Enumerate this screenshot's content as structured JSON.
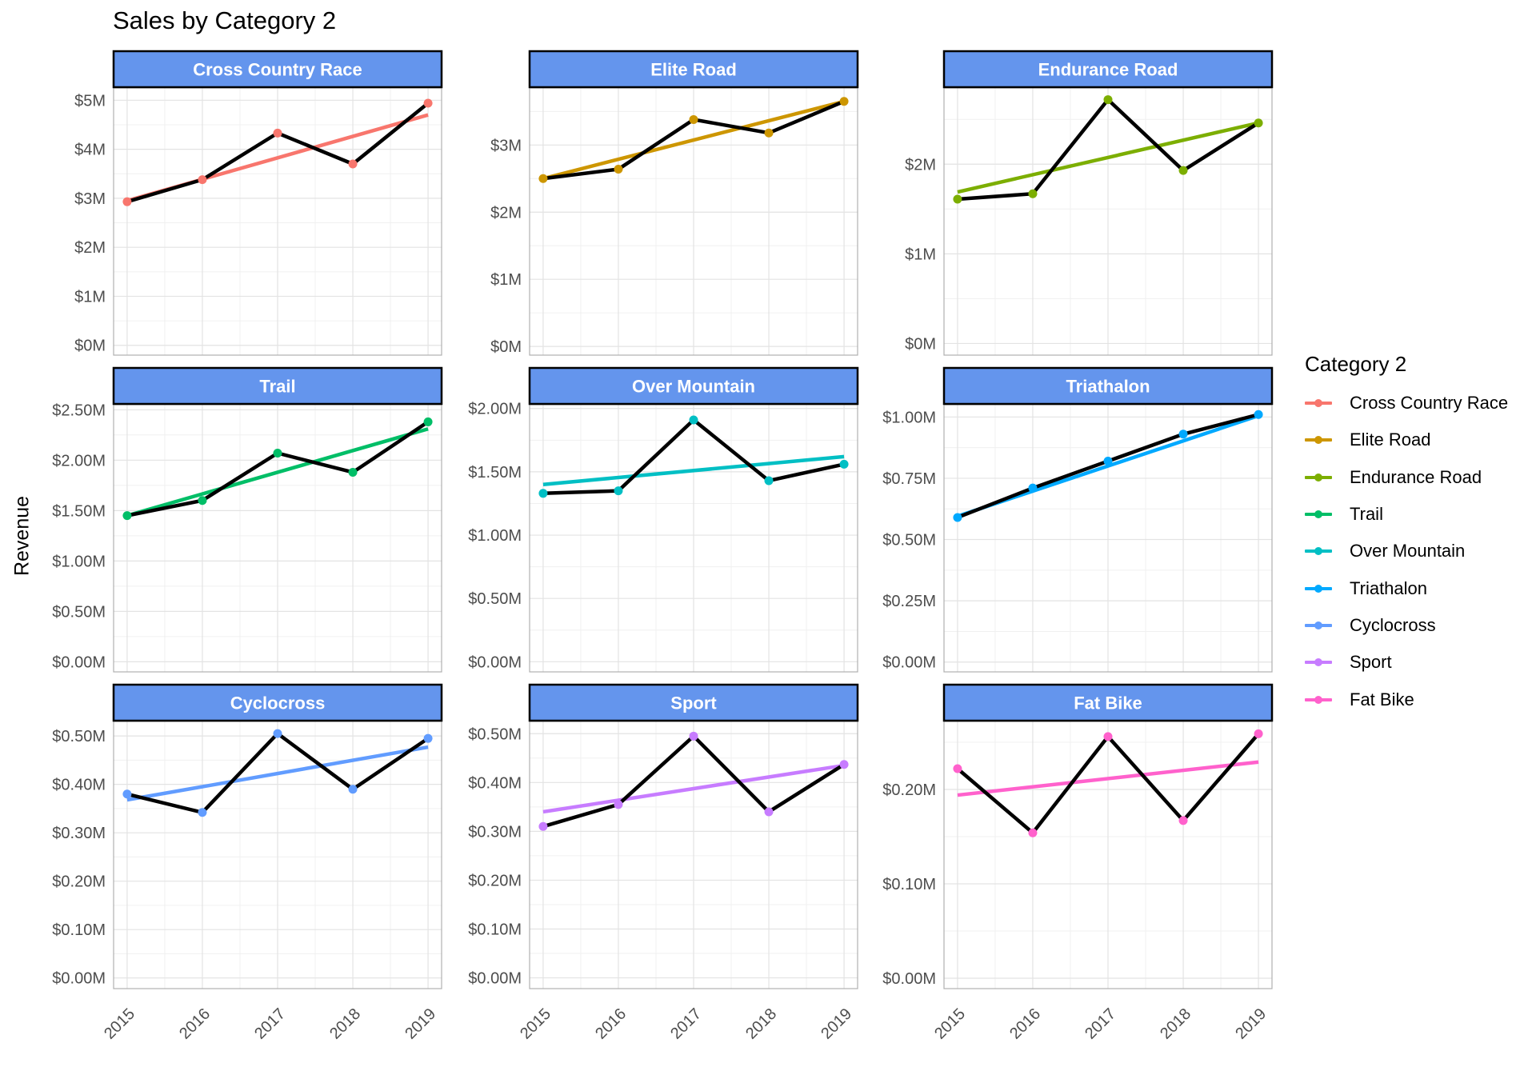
{
  "title": "Sales by Category 2",
  "ylabel": "Revenue",
  "legend_title": "Category 2",
  "strip_fill": "#6495ED",
  "actual_line_color": "#000000",
  "chart_data": {
    "type": "line",
    "facet_by": "Category 2",
    "x": [
      2015,
      2016,
      2017,
      2018,
      2019
    ],
    "x_tick_labels": [
      "2015",
      "2016",
      "2017",
      "2018",
      "2019"
    ],
    "xlabel": "",
    "ylabel": "Revenue",
    "grid": true,
    "legend_position": "right",
    "series": [
      {
        "name": "Cross Country Race",
        "color": "#F8766D",
        "values": [
          2.93,
          3.38,
          4.33,
          3.7,
          4.94
        ],
        "trend": [
          2.95,
          4.7
        ],
        "ylim": [
          -0.2,
          5.25
        ],
        "yticks": [
          0,
          1,
          2,
          3,
          4,
          5
        ],
        "ytick_labels": [
          "$0M",
          "$1M",
          "$2M",
          "$3M",
          "$4M",
          "$5M"
        ]
      },
      {
        "name": "Elite Road",
        "color": "#CD9600",
        "values": [
          2.5,
          2.64,
          3.38,
          3.18,
          3.65
        ],
        "trend": [
          2.5,
          3.65
        ],
        "ylim": [
          -0.13,
          3.85
        ],
        "yticks": [
          0,
          1,
          2,
          3
        ],
        "ytick_labels": [
          "$0M",
          "$1M",
          "$2M",
          "$3M"
        ]
      },
      {
        "name": "Endurance Road",
        "color": "#7CAE00",
        "values": [
          1.61,
          1.67,
          2.72,
          1.93,
          2.46
        ],
        "trend": [
          1.69,
          2.46
        ],
        "ylim": [
          -0.13,
          2.85
        ],
        "yticks": [
          0,
          1,
          2
        ],
        "ytick_labels": [
          "$0M",
          "$1M",
          "$2M"
        ]
      },
      {
        "name": "Trail",
        "color": "#00BE67",
        "values": [
          1.45,
          1.6,
          2.07,
          1.88,
          2.38
        ],
        "trend": [
          1.45,
          2.31
        ],
        "ylim": [
          -0.1,
          2.55
        ],
        "yticks": [
          0,
          0.5,
          1.0,
          1.5,
          2.0,
          2.5
        ],
        "ytick_labels": [
          "$0.00M",
          "$0.50M",
          "$1.00M",
          "$1.50M",
          "$2.00M",
          "$2.50M"
        ]
      },
      {
        "name": "Over Mountain",
        "color": "#00BFC4",
        "values": [
          1.33,
          1.35,
          1.91,
          1.43,
          1.56
        ],
        "trend": [
          1.4,
          1.62
        ],
        "ylim": [
          -0.08,
          2.03
        ],
        "yticks": [
          0,
          0.5,
          1.0,
          1.5,
          2.0
        ],
        "ytick_labels": [
          "$0.00M",
          "$0.50M",
          "$1.00M",
          "$1.50M",
          "$2.00M"
        ]
      },
      {
        "name": "Triathalon",
        "color": "#00A9FF",
        "values": [
          0.59,
          0.71,
          0.82,
          0.93,
          1.01
        ],
        "trend": [
          0.595,
          1.005
        ],
        "ylim": [
          -0.04,
          1.05
        ],
        "yticks": [
          0,
          0.25,
          0.5,
          0.75,
          1.0
        ],
        "ytick_labels": [
          "$0.00M",
          "$0.25M",
          "$0.50M",
          "$0.75M",
          "$1.00M"
        ]
      },
      {
        "name": "Cyclocross",
        "color": "#619CFF",
        "values": [
          0.38,
          0.342,
          0.505,
          0.39,
          0.495
        ],
        "trend": [
          0.368,
          0.477
        ],
        "ylim": [
          -0.022,
          0.53
        ],
        "yticks": [
          0,
          0.1,
          0.2,
          0.3,
          0.4,
          0.5
        ],
        "ytick_labels": [
          "$0.00M",
          "$0.10M",
          "$0.20M",
          "$0.30M",
          "$0.40M",
          "$0.50M"
        ]
      },
      {
        "name": "Sport",
        "color": "#C77CFF",
        "values": [
          0.31,
          0.355,
          0.495,
          0.34,
          0.437
        ],
        "trend": [
          0.34,
          0.435
        ],
        "ylim": [
          -0.022,
          0.525
        ],
        "yticks": [
          0,
          0.1,
          0.2,
          0.3,
          0.4,
          0.5
        ],
        "ytick_labels": [
          "$0.00M",
          "$0.10M",
          "$0.20M",
          "$0.30M",
          "$0.40M",
          "$0.50M"
        ]
      },
      {
        "name": "Fat Bike",
        "color": "#FF61CC",
        "values": [
          0.222,
          0.154,
          0.256,
          0.167,
          0.259
        ],
        "trend": [
          0.194,
          0.229
        ],
        "ylim": [
          -0.011,
          0.272
        ],
        "yticks": [
          0,
          0.1,
          0.2
        ],
        "ytick_labels": [
          "$0.00M",
          "$0.10M",
          "$0.20M"
        ]
      }
    ]
  }
}
